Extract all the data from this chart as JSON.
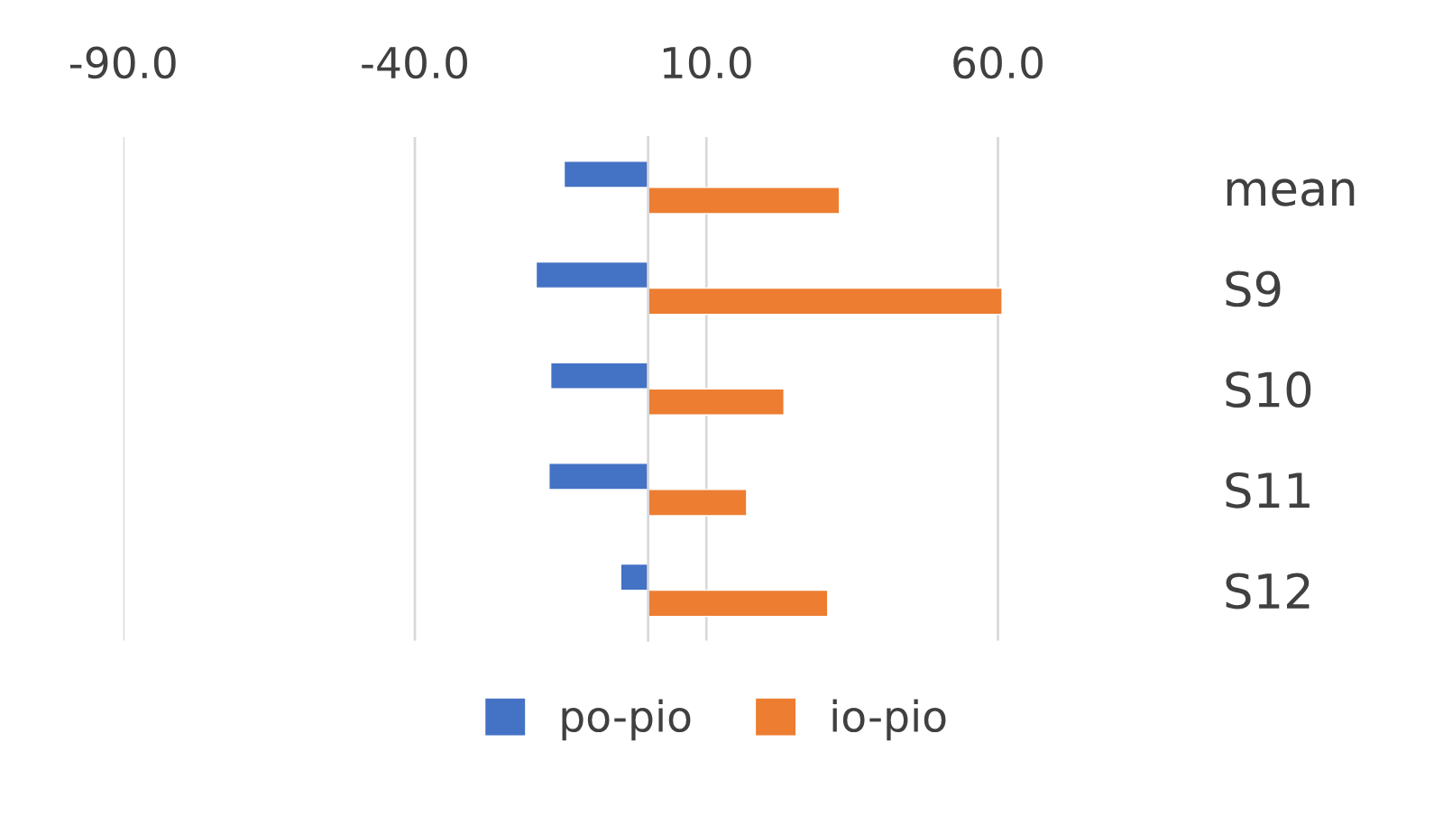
{
  "chart_data": {
    "type": "bar",
    "orientation": "horizontal",
    "categories": [
      "mean",
      "S9",
      "S10",
      "S11",
      "S12"
    ],
    "series": [
      {
        "name": "po-pio",
        "color": "#4472c4",
        "values": [
          -14.4,
          -19.2,
          -16.7,
          -17.0,
          -4.7
        ]
      },
      {
        "name": "io-pio",
        "color": "#ed7d31",
        "values": [
          32.8,
          60.7,
          23.3,
          16.9,
          30.8
        ]
      }
    ],
    "xlim": [
      -90,
      61
    ],
    "xticks": [
      {
        "value": -90,
        "label": "-90.0"
      },
      {
        "value": -40,
        "label": "-40.0"
      },
      {
        "value": 10,
        "label": "10.0"
      },
      {
        "value": 60,
        "label": "60.0"
      }
    ],
    "grid": "x",
    "legend": "bottom"
  }
}
